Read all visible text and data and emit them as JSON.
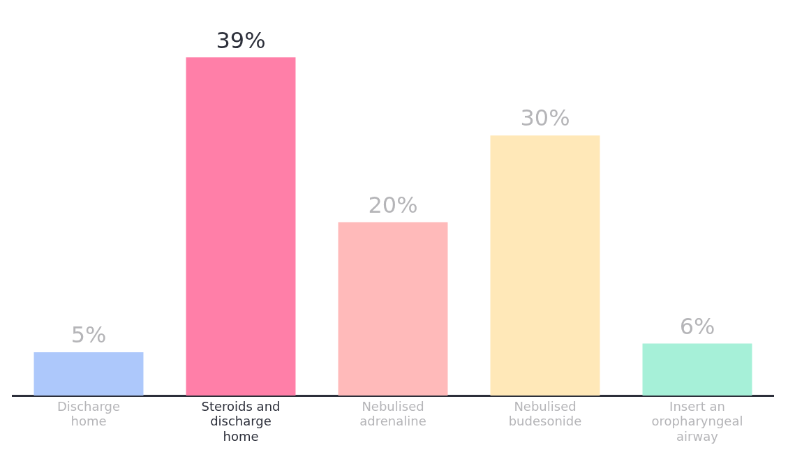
{
  "chart_data": {
    "type": "bar",
    "categories": [
      "Discharge home",
      "Steroids and discharge home",
      "Nebulised adrenaline",
      "Nebulised budesonide",
      "Insert an oropharyngeal airway"
    ],
    "values": [
      5,
      39,
      20,
      30,
      6
    ],
    "colors": [
      "#adc8fb",
      "#ff7fa8",
      "#ffbaba",
      "#ffe8b8",
      "#a6f0d8"
    ],
    "value_labels": [
      "5%",
      "39%",
      "20%",
      "30%",
      "6%"
    ],
    "grid": false,
    "legend": false
  }
}
